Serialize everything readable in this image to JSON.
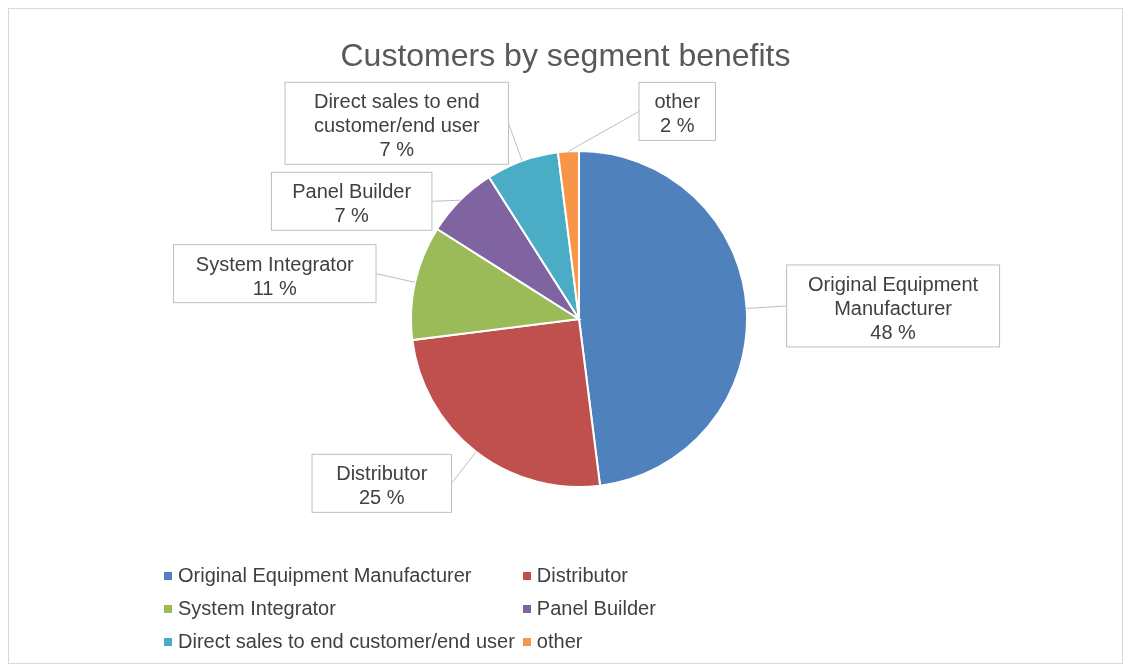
{
  "chart_data": {
    "type": "pie",
    "title": "Customers by segment benefits",
    "categories": [
      "Original Equipment Manufacturer",
      "Distributor",
      "System Integrator",
      "Panel Builder",
      "Direct sales to end customer/end user",
      "other"
    ],
    "values": [
      48,
      25,
      11,
      7,
      7,
      2
    ],
    "value_labels": [
      "48 %",
      "25 %",
      "11 %",
      "7 %",
      "7 %",
      "2 %"
    ],
    "colors": [
      "#4f81bd",
      "#c0504d",
      "#9bbb59",
      "#8064a2",
      "#4bacc6",
      "#f79646"
    ],
    "legend": "bottom"
  }
}
